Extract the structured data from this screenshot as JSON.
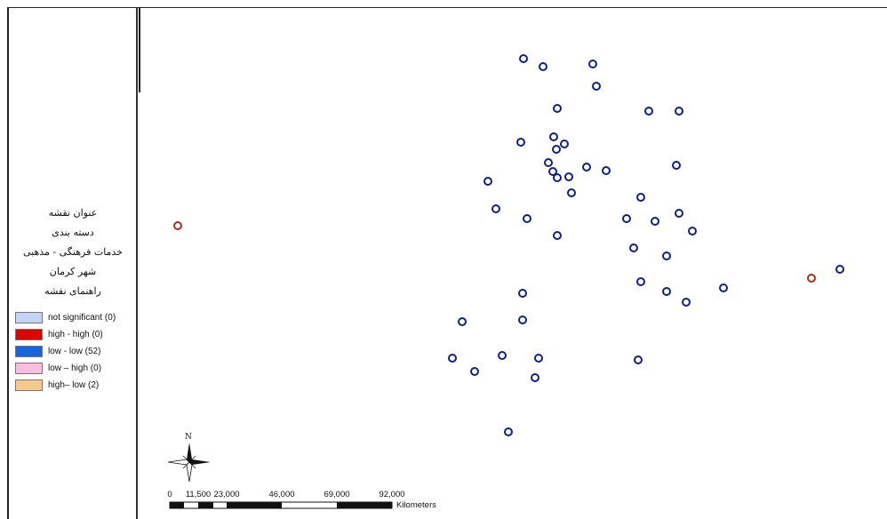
{
  "legend": {
    "map_title": "عنوان نقشه",
    "classification": "دسته بندی",
    "service_type": "خدمات فرهنگی - مذهبی",
    "city": "شهر کرمان",
    "legend_heading": "راهنمای نقشه",
    "items": [
      {
        "label": "not significant (0)",
        "color": "#c3d4f7"
      },
      {
        "label": "high - high (0)",
        "color": "#e00000"
      },
      {
        "label": "low - low (52)",
        "color": "#1565dd"
      },
      {
        "label": "low – high (0)",
        "color": "#f8bde0"
      },
      {
        "label": "high– low (2)",
        "color": "#f6c98a"
      }
    ]
  },
  "north_arrow": {
    "label": "N"
  },
  "scale_bar": {
    "labels": [
      "0",
      "11,500",
      "23,000",
      "46,000",
      "69,000",
      "92,000"
    ],
    "unit": "Kilometers"
  },
  "points": {
    "low_low_color": "#0f1f8f",
    "high_low_color": "#b52a1c"
  }
}
